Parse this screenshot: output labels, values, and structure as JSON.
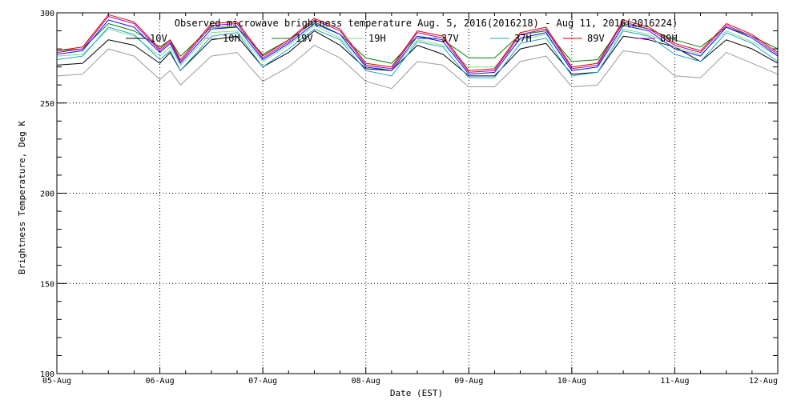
{
  "chart_data": {
    "type": "line",
    "title": "Observed microwave brightness temperature Aug. 5, 2016(2016218) - Aug 11, 2016(2016224)",
    "xlabel": "Date (EST)",
    "ylabel": "Brightness Temperature, Deg K",
    "xlim": [
      0,
      7
    ],
    "ylim": [
      100,
      300
    ],
    "grid": true,
    "legend_position": "top",
    "x_ticks": [
      {
        "value": 0,
        "label": "05-Aug"
      },
      {
        "value": 1,
        "label": "06-Aug"
      },
      {
        "value": 2,
        "label": "07-Aug"
      },
      {
        "value": 3,
        "label": "08-Aug"
      },
      {
        "value": 4,
        "label": "09-Aug"
      },
      {
        "value": 5,
        "label": "10-Aug"
      },
      {
        "value": 6,
        "label": "11-Aug"
      },
      {
        "value": 7,
        "label": "12-Aug"
      }
    ],
    "y_ticks": [
      {
        "value": 100,
        "label": "100"
      },
      {
        "value": 150,
        "label": "150"
      },
      {
        "value": 200,
        "label": "200"
      },
      {
        "value": 250,
        "label": "250"
      },
      {
        "value": 300,
        "label": "300"
      }
    ],
    "x": [
      0,
      0.25,
      0.5,
      0.75,
      1.0,
      1.1,
      1.2,
      1.5,
      1.75,
      2.0,
      2.25,
      2.5,
      2.75,
      3.0,
      3.25,
      3.5,
      3.75,
      4.0,
      4.25,
      4.5,
      4.75,
      5.0,
      5.25,
      5.5,
      5.75,
      6.0,
      6.25,
      6.5,
      6.75,
      7.0
    ],
    "series": [
      {
        "name": "10V",
        "color": "#000000",
        "values": [
          271,
          272,
          285,
          282,
          272,
          278,
          268,
          285,
          287,
          270,
          278,
          290,
          282,
          269,
          268,
          282,
          277,
          265,
          265,
          280,
          283,
          266,
          267,
          287,
          285,
          281,
          273,
          285,
          280,
          272
        ]
      },
      {
        "name": "10H",
        "color": "#9a9a9a",
        "values": [
          265,
          266,
          280,
          276,
          263,
          268,
          260,
          276,
          278,
          262,
          270,
          282,
          275,
          262,
          258,
          273,
          271,
          259,
          259,
          273,
          276,
          259,
          260,
          279,
          277,
          265,
          264,
          278,
          272,
          266
        ]
      },
      {
        "name": "19V",
        "color": "#008000",
        "values": [
          279,
          280,
          294,
          290,
          281,
          285,
          276,
          292,
          292,
          277,
          285,
          295,
          288,
          275,
          272,
          287,
          285,
          275,
          275,
          288,
          290,
          273,
          274,
          294,
          291,
          285,
          281,
          292,
          287,
          280
        ]
      },
      {
        "name": "19H",
        "color": "#7fe07f",
        "values": [
          276,
          277,
          291,
          287,
          276,
          281,
          271,
          289,
          290,
          273,
          282,
          293,
          286,
          271,
          268,
          285,
          282,
          270,
          270,
          285,
          288,
          268,
          270,
          291,
          288,
          281,
          277,
          290,
          284,
          276
        ]
      },
      {
        "name": "37V",
        "color": "#1010ff",
        "values": [
          277,
          279,
          296,
          292,
          278,
          283,
          272,
          291,
          292,
          274,
          283,
          294,
          288,
          270,
          268,
          287,
          284,
          266,
          267,
          286,
          289,
          268,
          270,
          293,
          290,
          280,
          276,
          292,
          286,
          276
        ]
      },
      {
        "name": "37H",
        "color": "#1fa3d6",
        "values": [
          274,
          276,
          292,
          288,
          274,
          279,
          268,
          287,
          289,
          270,
          280,
          291,
          285,
          268,
          265,
          284,
          281,
          264,
          264,
          283,
          286,
          265,
          267,
          290,
          287,
          277,
          273,
          289,
          283,
          273
        ]
      },
      {
        "name": "89V",
        "color": "#e00000",
        "values": [
          279,
          281,
          299,
          295,
          280,
          285,
          274,
          294,
          295,
          276,
          285,
          297,
          291,
          272,
          270,
          290,
          287,
          268,
          269,
          289,
          292,
          270,
          272,
          296,
          292,
          283,
          279,
          294,
          288,
          278
        ]
      },
      {
        "name": "89H",
        "color": "#b000b0",
        "values": [
          278,
          280,
          298,
          294,
          279,
          284,
          273,
          293,
          294,
          275,
          284,
          296,
          290,
          271,
          269,
          289,
          286,
          267,
          268,
          288,
          291,
          269,
          271,
          295,
          291,
          282,
          278,
          293,
          287,
          277
        ]
      }
    ]
  }
}
